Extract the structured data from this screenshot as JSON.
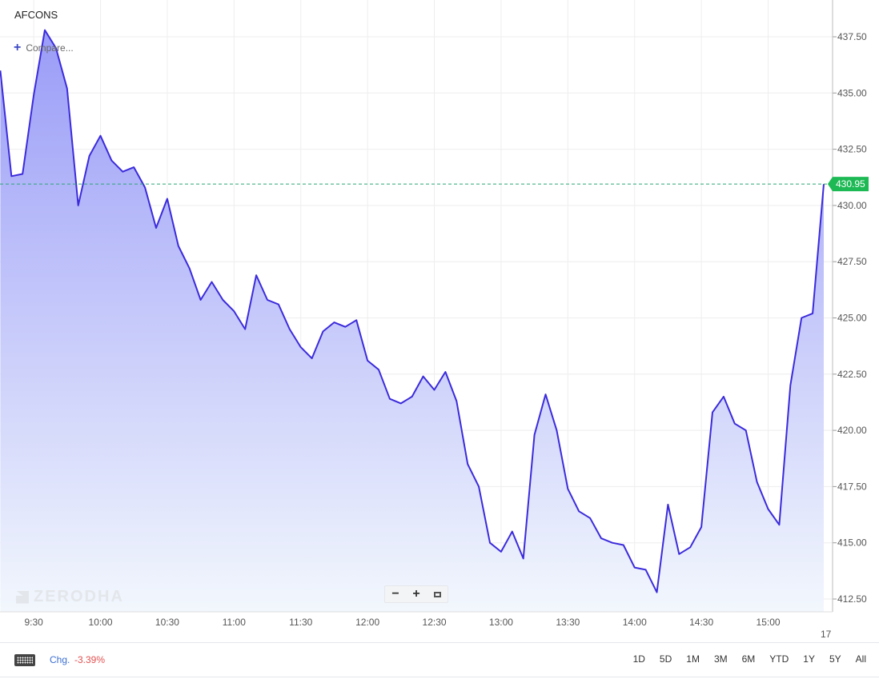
{
  "symbol": "AFCONS",
  "compare_label": "Compare...",
  "watermark": "ZERODHA",
  "zoom": {
    "minus": "−",
    "plus": "+"
  },
  "footer": {
    "chg_label": "Chg.",
    "chg_value": "-3.39%",
    "ranges": [
      "1D",
      "5D",
      "1M",
      "3M",
      "6M",
      "YTD",
      "1Y",
      "5Y",
      "All"
    ]
  },
  "colors": {
    "line": "#3b2bdb",
    "last_price_tag": "#1db954",
    "fill_top": "#9a9cf7",
    "fill_bottom": "#f2f7fd"
  },
  "chart_data": {
    "type": "area",
    "title": "AFCONS",
    "x_tick_labels": [
      "9:30",
      "10:00",
      "10:30",
      "11:00",
      "11:30",
      "12:00",
      "12:30",
      "13:00",
      "13:30",
      "14:00",
      "14:30",
      "15:00"
    ],
    "x_trailing_label": "17",
    "y_ticks": [
      412.5,
      415,
      417.5,
      420,
      422.5,
      425,
      427.5,
      430,
      432.5,
      435,
      437.5
    ],
    "ylim": [
      412.0,
      438.5
    ],
    "last_price": 430.95,
    "grid": true,
    "interval_minutes": 5,
    "series": [
      {
        "x": [
          "9:15",
          "9:20",
          "9:25",
          "9:30",
          "9:35",
          "9:40",
          "9:45",
          "9:50",
          "9:55",
          "10:00",
          "10:05",
          "10:10",
          "10:15",
          "10:20",
          "10:25",
          "10:30",
          "10:35",
          "10:40",
          "10:45",
          "10:50",
          "10:55",
          "11:00",
          "11:05",
          "11:10",
          "11:15",
          "11:20",
          "11:25",
          "11:30",
          "11:35",
          "11:40",
          "11:45",
          "11:50",
          "11:55",
          "12:00",
          "12:05",
          "12:10",
          "12:15",
          "12:20",
          "12:25",
          "12:30",
          "12:35",
          "12:40",
          "12:45",
          "12:50",
          "12:55",
          "13:00",
          "13:05",
          "13:10",
          "13:15",
          "13:20",
          "13:25",
          "13:30",
          "13:35",
          "13:40",
          "13:45",
          "13:50",
          "13:55",
          "14:00",
          "14:05",
          "14:10",
          "14:15",
          "14:20",
          "14:25",
          "14:30",
          "14:35",
          "14:40",
          "14:45",
          "14:50",
          "14:55",
          "15:00",
          "15:05",
          "15:10",
          "15:15",
          "15:20",
          "15:25"
        ],
        "values": [
          436.0,
          431.3,
          431.4,
          434.9,
          437.8,
          437.0,
          435.2,
          430.0,
          432.2,
          433.1,
          432.0,
          431.5,
          431.7,
          430.8,
          429.0,
          430.3,
          428.2,
          427.2,
          425.8,
          426.6,
          425.8,
          425.3,
          424.5,
          426.9,
          425.8,
          425.6,
          424.5,
          423.7,
          423.2,
          424.4,
          424.8,
          424.6,
          424.9,
          423.1,
          422.7,
          421.4,
          421.2,
          421.5,
          422.4,
          421.8,
          422.6,
          421.3,
          418.5,
          417.5,
          415.0,
          414.6,
          415.5,
          414.3,
          419.8,
          421.6,
          420.0,
          417.4,
          416.4,
          416.1,
          415.2,
          415.0,
          414.9,
          413.9,
          413.8,
          412.8,
          416.7,
          414.5,
          414.8,
          415.7,
          420.8,
          421.5,
          420.3,
          420.0,
          417.7,
          416.5,
          415.8,
          422.0,
          425.0,
          425.2,
          430.95
        ]
      }
    ]
  }
}
